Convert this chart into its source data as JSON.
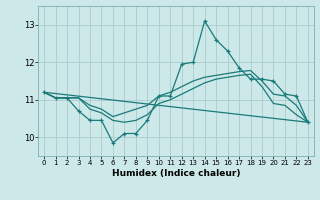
{
  "title": "",
  "xlabel": "Humidex (Indice chaleur)",
  "bg_color": "#cce8e8",
  "grid_color": "#aacccc",
  "line_color": "#1a7a7a",
  "xlim": [
    -0.5,
    23.5
  ],
  "ylim": [
    9.5,
    13.5
  ],
  "yticks": [
    10,
    11,
    12,
    13
  ],
  "ytick_labels": [
    "10",
    "11",
    "12",
    "13"
  ],
  "xticks": [
    0,
    1,
    2,
    3,
    4,
    5,
    6,
    7,
    8,
    9,
    10,
    11,
    12,
    13,
    14,
    15,
    16,
    17,
    18,
    19,
    20,
    21,
    22,
    23
  ],
  "series": [
    {
      "x": [
        0,
        1,
        2,
        3,
        4,
        5,
        6,
        7,
        8,
        9,
        10,
        11,
        12,
        13,
        14,
        15,
        16,
        17,
        18,
        19,
        20,
        21,
        22,
        23
      ],
      "y": [
        11.2,
        11.05,
        11.05,
        10.7,
        10.45,
        10.45,
        9.85,
        10.1,
        10.1,
        10.45,
        11.1,
        11.1,
        11.95,
        12.0,
        13.1,
        12.6,
        12.3,
        11.85,
        11.55,
        11.55,
        11.5,
        11.15,
        11.1,
        10.4
      ],
      "marker": true
    },
    {
      "x": [
        0,
        1,
        2,
        3,
        4,
        5,
        6,
        7,
        8,
        9,
        10,
        11,
        12,
        13,
        14,
        15,
        16,
        17,
        18,
        19,
        20,
        21,
        22,
        23
      ],
      "y": [
        11.2,
        11.05,
        11.05,
        11.05,
        10.85,
        10.75,
        10.55,
        10.65,
        10.75,
        10.85,
        11.1,
        11.2,
        11.35,
        11.5,
        11.6,
        11.65,
        11.7,
        11.75,
        11.78,
        11.5,
        11.15,
        11.1,
        10.85,
        10.4
      ],
      "marker": false
    },
    {
      "x": [
        0,
        1,
        2,
        3,
        4,
        5,
        6,
        7,
        8,
        9,
        10,
        11,
        12,
        13,
        14,
        15,
        16,
        17,
        18,
        19,
        20,
        21,
        22,
        23
      ],
      "y": [
        11.2,
        11.05,
        11.05,
        11.05,
        10.75,
        10.65,
        10.45,
        10.4,
        10.45,
        10.6,
        10.9,
        11.0,
        11.15,
        11.3,
        11.45,
        11.55,
        11.6,
        11.65,
        11.68,
        11.35,
        10.9,
        10.85,
        10.6,
        10.4
      ],
      "marker": false
    },
    {
      "x": [
        0,
        23
      ],
      "y": [
        11.2,
        10.4
      ],
      "marker": false
    }
  ]
}
